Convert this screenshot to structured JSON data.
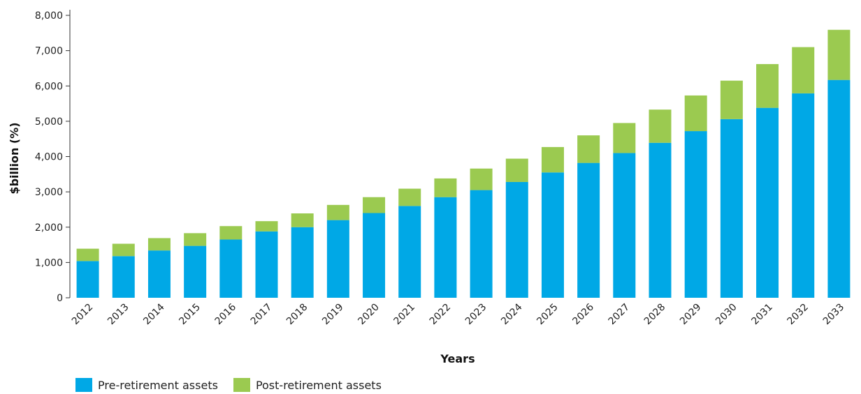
{
  "chart_data": {
    "type": "bar",
    "stacked": true,
    "categories": [
      "2012",
      "2013",
      "2014",
      "2015",
      "2016",
      "2017",
      "2018",
      "2019",
      "2020",
      "2021",
      "2022",
      "2023",
      "2024",
      "2025",
      "2026",
      "2027",
      "2028",
      "2029",
      "2030",
      "2031",
      "2032",
      "2033"
    ],
    "series": [
      {
        "name": "Pre-retirement assets",
        "color": "#00a8e6",
        "values": [
          1040,
          1180,
          1340,
          1470,
          1650,
          1880,
          2000,
          2200,
          2400,
          2600,
          2850,
          3050,
          3280,
          3550,
          3820,
          4100,
          4390,
          4720,
          5060,
          5380,
          5790,
          6170
        ]
      },
      {
        "name": "Post-retirement assets",
        "color": "#9bca50",
        "values": [
          350,
          350,
          350,
          360,
          380,
          290,
          390,
          430,
          450,
          490,
          530,
          610,
          660,
          720,
          780,
          850,
          940,
          1010,
          1090,
          1240,
          1310,
          1420
        ]
      }
    ],
    "xlabel": "Years",
    "ylabel": "$billion (%)",
    "ylim": [
      0,
      8000
    ],
    "yticks": [
      0,
      1000,
      2000,
      3000,
      4000,
      5000,
      6000,
      7000,
      8000
    ],
    "ytick_labels": [
      "0",
      "1,000",
      "2,000",
      "3,000",
      "4,000",
      "5,000",
      "6,000",
      "7,000",
      "8,000"
    ],
    "grid": false,
    "legend_position": "bottom-left"
  }
}
